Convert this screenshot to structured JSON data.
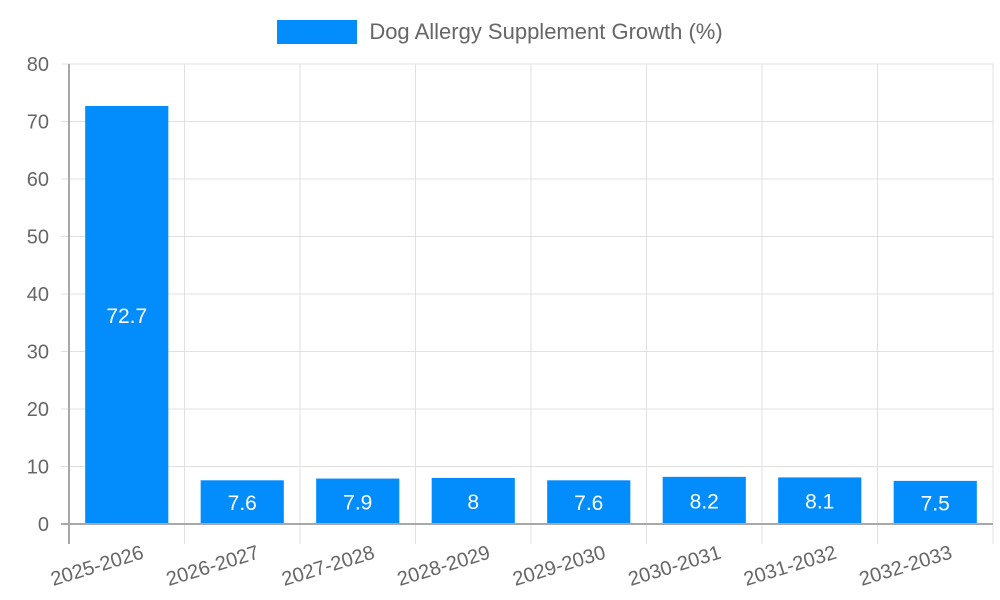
{
  "legend": {
    "label": "Dog Allergy Supplement Growth (%)",
    "color": "#038cfc"
  },
  "colors": {
    "bar": "#038cfc",
    "grid": "#e0e0e0",
    "axis": "#a8a8a8",
    "tick_text": "#666666",
    "bar_label": "#ffffff"
  },
  "chart_data": {
    "type": "bar",
    "title": "",
    "xlabel": "",
    "ylabel": "",
    "categories": [
      "2025-2026",
      "2026-2027",
      "2027-2028",
      "2028-2029",
      "2029-2030",
      "2030-2031",
      "2031-2032",
      "2032-2033"
    ],
    "series": [
      {
        "name": "Dog Allergy Supplement Growth (%)",
        "values": [
          72.7,
          7.6,
          7.9,
          8,
          7.6,
          8.2,
          8.1,
          7.5
        ]
      }
    ],
    "value_labels": [
      "72.7",
      "7.6",
      "7.9",
      "8",
      "7.6",
      "8.2",
      "8.1",
      "7.5"
    ],
    "ylim": [
      0,
      80
    ],
    "yticks": [
      0,
      10,
      20,
      30,
      40,
      50,
      60,
      70,
      80
    ],
    "grid": true,
    "legend_position": "top"
  }
}
